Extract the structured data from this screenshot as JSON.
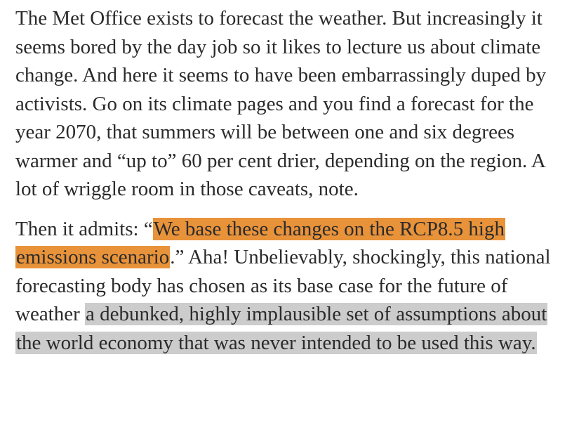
{
  "article": {
    "paragraph_1": "The Met Office exists to forecast the weather. But increasingly it seems bored by the day job so it likes to lecture us about climate change. And here it seems to have been embarrassingly duped by activists. Go on its climate pages and you find a forecast for the year 2070, that summers will be between one and six degrees warmer and “up to” 60 per cent drier, depending on the region. A lot of wriggle room in those caveats, note.",
    "paragraph_2": {
      "lead": "Then it admits: “",
      "quote_highlighted": "We base these changes on the RCP8.5 high emissions scenario",
      "after_quote": ".” Aha! Unbelievably, shockingly, this national forecasting body has chosen as its base case for the future of weather ",
      "grey_highlighted": "a debunked, highly implausible set of assumptions about the world economy that was never intended to be used this way."
    }
  },
  "colors": {
    "text": "#2b2b2b",
    "highlight_orange": "#e8923a",
    "highlight_grey": "#cccccc",
    "background": "#ffffff"
  }
}
